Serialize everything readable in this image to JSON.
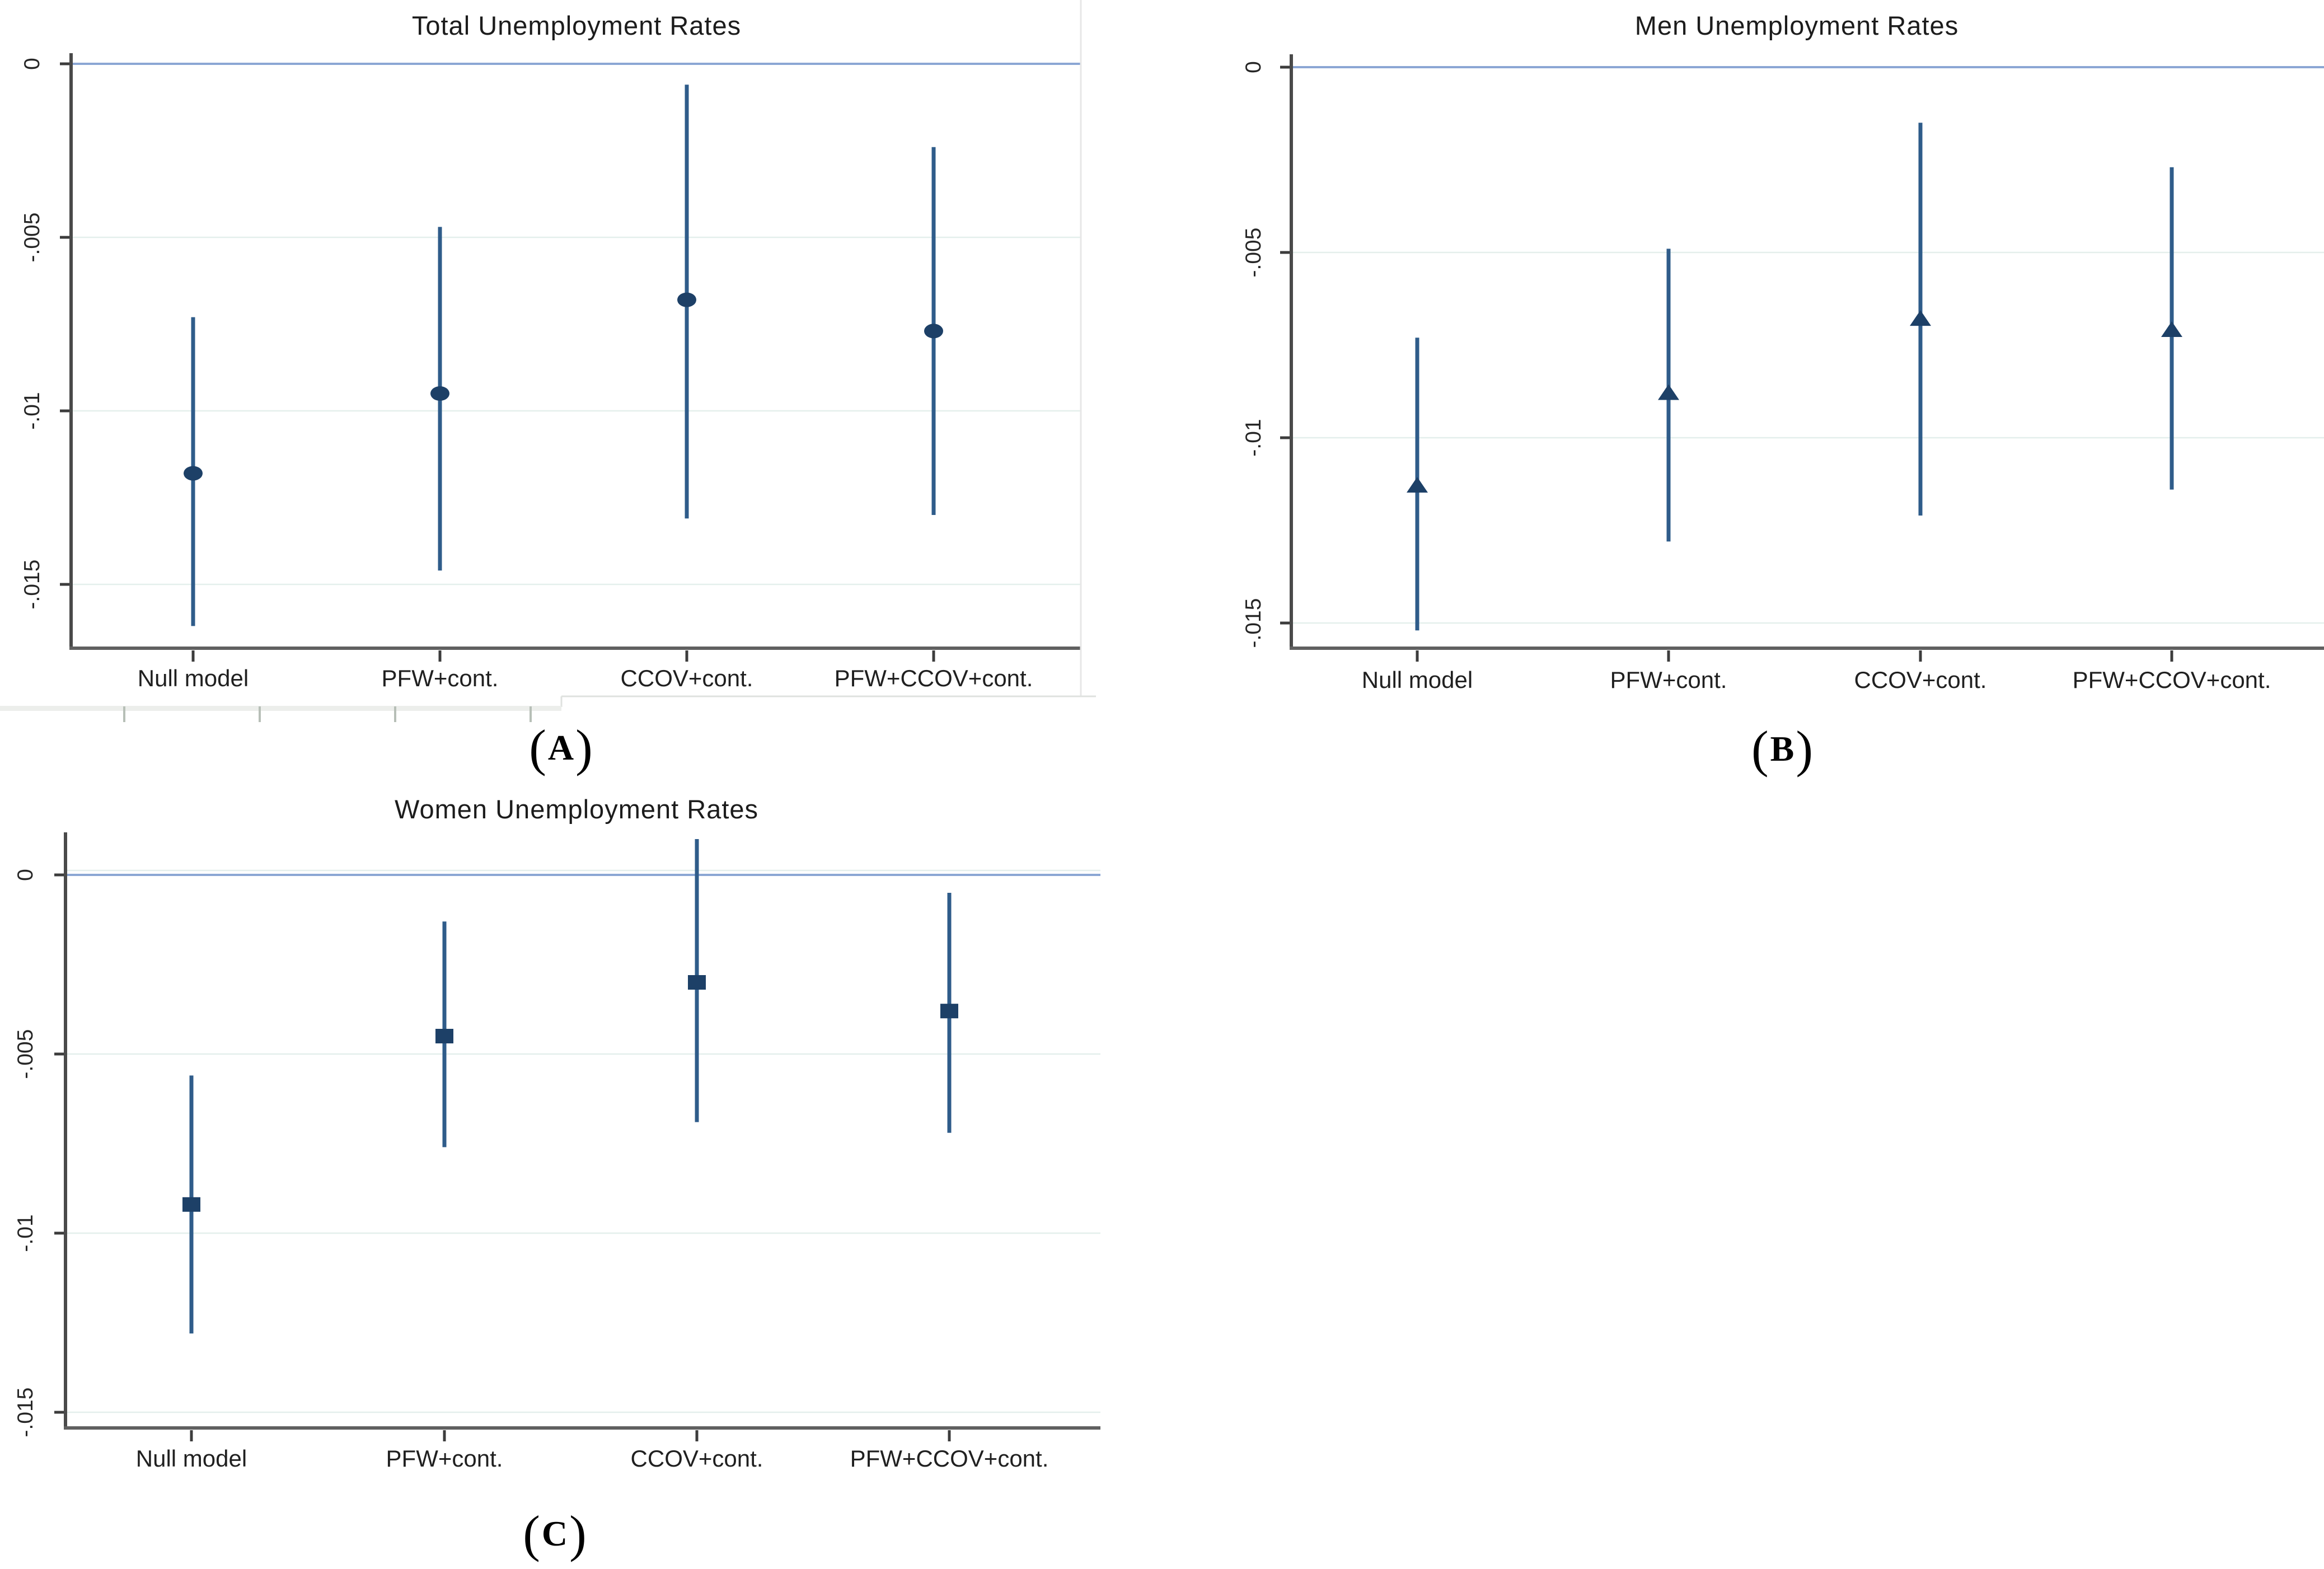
{
  "figure": {
    "captions": [
      {
        "open": "(",
        "letter": "A",
        "close": ")"
      },
      {
        "open": "(",
        "letter": "B",
        "close": ")"
      },
      {
        "open": "(",
        "letter": "C",
        "close": ")"
      }
    ]
  },
  "palette": {
    "marker": "#1d4067",
    "ci_line": "#2f5c8a",
    "zero_line": "#8ba6d4",
    "gridline": "#e4efec",
    "axis_line": "#606060",
    "spine": "#4a4a4a",
    "tick": "#3c3c3c",
    "text": "#1c1c1c",
    "artifact_line": "#dfe2df",
    "artifact_band": "#eceeeb",
    "artifact_tick": "#b7bfb7",
    "panel_border": "#e7e7e7"
  },
  "chart_data": [
    {
      "type": "scatter",
      "title": "Total Unemployment Rates",
      "marker": "circle",
      "legend": "none",
      "grid": "on",
      "xlabel": "",
      "ylabel": "",
      "ylim": [
        -0.0168,
        0.0003
      ],
      "zero_line": 0,
      "categories": [
        "Null model",
        "PFW+cont.",
        "CCOV+cont.",
        "PFW+CCOV+cont."
      ],
      "yticks": [
        {
          "value": 0,
          "label": "0"
        },
        {
          "value": -0.005,
          "label": "-.005"
        },
        {
          "value": -0.01,
          "label": "-.01"
        },
        {
          "value": -0.015,
          "label": "-.015"
        }
      ],
      "points": [
        {
          "category": "Null model",
          "estimate": -0.0118,
          "ci_low": -0.0162,
          "ci_high": -0.0073
        },
        {
          "category": "PFW+cont.",
          "estimate": -0.0095,
          "ci_low": -0.0146,
          "ci_high": -0.0047
        },
        {
          "category": "CCOV+cont.",
          "estimate": -0.0068,
          "ci_low": -0.0131,
          "ci_high": -0.0006
        },
        {
          "category": "PFW+CCOV+cont.",
          "estimate": -0.0077,
          "ci_low": -0.013,
          "ci_high": -0.0024
        }
      ]
    },
    {
      "type": "scatter",
      "title": "Men Unemployment Rates",
      "marker": "triangle",
      "legend": "none",
      "grid": "on",
      "xlabel": "",
      "ylabel": "",
      "ylim": [
        -0.0157,
        0.0003
      ],
      "zero_line": 0,
      "categories": [
        "Null model",
        "PFW+cont.",
        "CCOV+cont.",
        "PFW+CCOV+cont."
      ],
      "yticks": [
        {
          "value": 0,
          "label": "0"
        },
        {
          "value": -0.005,
          "label": "-.005"
        },
        {
          "value": -0.01,
          "label": "-.01"
        },
        {
          "value": -0.015,
          "label": "-.015"
        }
      ],
      "points": [
        {
          "category": "Null model",
          "estimate": -0.0113,
          "ci_low": -0.0152,
          "ci_high": -0.0073
        },
        {
          "category": "PFW+cont.",
          "estimate": -0.0088,
          "ci_low": -0.0128,
          "ci_high": -0.0049
        },
        {
          "category": "CCOV+cont.",
          "estimate": -0.0068,
          "ci_low": -0.0121,
          "ci_high": -0.0015
        },
        {
          "category": "PFW+CCOV+cont.",
          "estimate": -0.0071,
          "ci_low": -0.0114,
          "ci_high": -0.0027
        }
      ]
    },
    {
      "type": "scatter",
      "title": "Women Unemployment Rates",
      "marker": "square",
      "legend": "none",
      "grid": "on",
      "xlabel": "",
      "ylabel": "",
      "ylim": [
        -0.0155,
        0.0012
      ],
      "zero_line": 0,
      "categories": [
        "Null model",
        "PFW+cont.",
        "CCOV+cont.",
        "PFW+CCOV+cont."
      ],
      "yticks": [
        {
          "value": 0,
          "label": "0"
        },
        {
          "value": -0.005,
          "label": "-.005"
        },
        {
          "value": -0.01,
          "label": "-.01"
        },
        {
          "value": -0.015,
          "label": "-.015"
        }
      ],
      "points": [
        {
          "category": "Null model",
          "estimate": -0.0092,
          "ci_low": -0.0128,
          "ci_high": -0.0056
        },
        {
          "category": "PFW+cont.",
          "estimate": -0.0045,
          "ci_low": -0.0076,
          "ci_high": -0.0013
        },
        {
          "category": "CCOV+cont.",
          "estimate": -0.003,
          "ci_low": -0.0069,
          "ci_high": 0.001
        },
        {
          "category": "PFW+CCOV+cont.",
          "estimate": -0.0038,
          "ci_low": -0.0072,
          "ci_high": -0.0005
        }
      ]
    }
  ]
}
